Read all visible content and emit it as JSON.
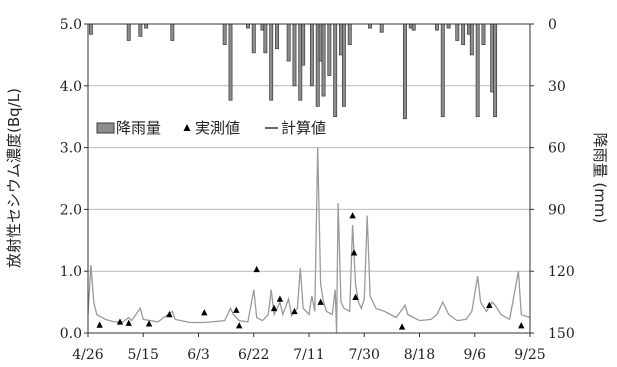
{
  "chart_data": {
    "type": "bar+line+scatter",
    "x_axis": {
      "tick_labels": [
        "4/26",
        "5/15",
        "6/3",
        "6/22",
        "7/11",
        "7/30",
        "8/18",
        "9/6",
        "9/25"
      ],
      "tick_days": [
        0,
        19,
        38,
        57,
        76,
        95,
        114,
        133,
        152
      ],
      "range_days": [
        0,
        152
      ]
    },
    "y_left": {
      "label": "放射性セシウム濃度(Bq/L)",
      "range": [
        0,
        5
      ],
      "tick_labels": [
        "0.0",
        "1.0",
        "2.0",
        "3.0",
        "4.0",
        "5.0"
      ],
      "ticks": [
        0,
        1,
        2,
        3,
        4,
        5
      ]
    },
    "y_right": {
      "label": "降雨量 (mm)",
      "range": [
        0,
        150
      ],
      "inverted": true,
      "tick_labels": [
        "0",
        "30",
        "60",
        "90",
        "120",
        "150"
      ],
      "ticks": [
        0,
        30,
        60,
        90,
        120,
        150
      ]
    },
    "grid": "horizontal",
    "legend": {
      "placement": "upper-left",
      "rain": "降雨量",
      "measured": "実測値",
      "calculated": "計算値"
    },
    "colors": {
      "bar": "#8c8c8c",
      "bar_edge": "#3a3a3a",
      "line": "#9a9a9a",
      "marker": "#000000",
      "grid": "#b8b8c8"
    },
    "rainfall": [
      {
        "day": 1,
        "mm": 5
      },
      {
        "day": 14,
        "mm": 8
      },
      {
        "day": 18,
        "mm": 6
      },
      {
        "day": 20,
        "mm": 2
      },
      {
        "day": 29,
        "mm": 8
      },
      {
        "day": 47,
        "mm": 10
      },
      {
        "day": 49,
        "mm": 37
      },
      {
        "day": 55,
        "mm": 2
      },
      {
        "day": 57,
        "mm": 14
      },
      {
        "day": 60,
        "mm": 3
      },
      {
        "day": 61,
        "mm": 14
      },
      {
        "day": 63,
        "mm": 37
      },
      {
        "day": 65,
        "mm": 12
      },
      {
        "day": 69,
        "mm": 18
      },
      {
        "day": 71,
        "mm": 30
      },
      {
        "day": 73,
        "mm": 37
      },
      {
        "day": 74,
        "mm": 20
      },
      {
        "day": 77,
        "mm": 30
      },
      {
        "day": 79,
        "mm": 40
      },
      {
        "day": 80,
        "mm": 18
      },
      {
        "day": 81,
        "mm": 35
      },
      {
        "day": 83,
        "mm": 25
      },
      {
        "day": 85,
        "mm": 45
      },
      {
        "day": 87,
        "mm": 15
      },
      {
        "day": 88,
        "mm": 40
      },
      {
        "day": 90,
        "mm": 10
      },
      {
        "day": 97,
        "mm": 2
      },
      {
        "day": 101,
        "mm": 4
      },
      {
        "day": 109,
        "mm": 46
      },
      {
        "day": 111,
        "mm": 2
      },
      {
        "day": 112,
        "mm": 3
      },
      {
        "day": 120,
        "mm": 3
      },
      {
        "day": 122,
        "mm": 45
      },
      {
        "day": 124,
        "mm": 2
      },
      {
        "day": 127,
        "mm": 8
      },
      {
        "day": 129,
        "mm": 10
      },
      {
        "day": 131,
        "mm": 5
      },
      {
        "day": 132,
        "mm": 15
      },
      {
        "day": 134,
        "mm": 45
      },
      {
        "day": 136,
        "mm": 10
      },
      {
        "day": 139,
        "mm": 33
      },
      {
        "day": 140,
        "mm": 45
      }
    ],
    "measured": [
      {
        "day": 4,
        "value": 0.13
      },
      {
        "day": 11,
        "value": 0.18
      },
      {
        "day": 14,
        "value": 0.16
      },
      {
        "day": 21,
        "value": 0.15
      },
      {
        "day": 28,
        "value": 0.3
      },
      {
        "day": 40,
        "value": 0.33
      },
      {
        "day": 51,
        "value": 0.37
      },
      {
        "day": 52,
        "value": 0.12
      },
      {
        "day": 58,
        "value": 1.03
      },
      {
        "day": 64,
        "value": 0.4
      },
      {
        "day": 66,
        "value": 0.55
      },
      {
        "day": 71,
        "value": 0.35
      },
      {
        "day": 80,
        "value": 0.5
      },
      {
        "day": 91,
        "value": 1.9
      },
      {
        "day": 91.5,
        "value": 1.3
      },
      {
        "day": 92,
        "value": 0.58
      },
      {
        "day": 108,
        "value": 0.1
      },
      {
        "day": 138,
        "value": 0.45
      },
      {
        "day": 149,
        "value": 0.12
      }
    ],
    "calculated": [
      {
        "day": 0,
        "value": 0.3
      },
      {
        "day": 1,
        "value": 1.1
      },
      {
        "day": 2,
        "value": 0.5
      },
      {
        "day": 3,
        "value": 0.3
      },
      {
        "day": 6,
        "value": 0.22
      },
      {
        "day": 9,
        "value": 0.18
      },
      {
        "day": 12,
        "value": 0.18
      },
      {
        "day": 14,
        "value": 0.25
      },
      {
        "day": 15,
        "value": 0.2
      },
      {
        "day": 18,
        "value": 0.4
      },
      {
        "day": 19,
        "value": 0.22
      },
      {
        "day": 24,
        "value": 0.18
      },
      {
        "day": 29,
        "value": 0.35
      },
      {
        "day": 30,
        "value": 0.22
      },
      {
        "day": 35,
        "value": 0.17
      },
      {
        "day": 40,
        "value": 0.17
      },
      {
        "day": 47,
        "value": 0.2
      },
      {
        "day": 49,
        "value": 0.4
      },
      {
        "day": 50,
        "value": 0.3
      },
      {
        "day": 52,
        "value": 0.2
      },
      {
        "day": 55,
        "value": 0.18
      },
      {
        "day": 57,
        "value": 0.7
      },
      {
        "day": 58,
        "value": 0.25
      },
      {
        "day": 60,
        "value": 0.2
      },
      {
        "day": 62,
        "value": 0.3
      },
      {
        "day": 63,
        "value": 0.7
      },
      {
        "day": 64,
        "value": 0.3
      },
      {
        "day": 66,
        "value": 0.5
      },
      {
        "day": 67,
        "value": 0.3
      },
      {
        "day": 69,
        "value": 0.55
      },
      {
        "day": 70,
        "value": 0.28
      },
      {
        "day": 72,
        "value": 0.4
      },
      {
        "day": 73,
        "value": 1.05
      },
      {
        "day": 74,
        "value": 0.4
      },
      {
        "day": 76,
        "value": 0.3
      },
      {
        "day": 77,
        "value": 0.6
      },
      {
        "day": 78,
        "value": 0.35
      },
      {
        "day": 79,
        "value": 3.0
      },
      {
        "day": 80,
        "value": 0.8
      },
      {
        "day": 81,
        "value": 0.5
      },
      {
        "day": 82,
        "value": 0.35
      },
      {
        "day": 84,
        "value": 0.3
      },
      {
        "day": 85,
        "value": 0.7
      },
      {
        "day": 85.5,
        "value": 0.0
      },
      {
        "day": 86,
        "value": 2.1
      },
      {
        "day": 87,
        "value": 0.5
      },
      {
        "day": 88,
        "value": 0.4
      },
      {
        "day": 90,
        "value": 0.35
      },
      {
        "day": 91,
        "value": 1.75
      },
      {
        "day": 92,
        "value": 0.8
      },
      {
        "day": 93,
        "value": 0.5
      },
      {
        "day": 94,
        "value": 0.4
      },
      {
        "day": 95,
        "value": 0.55
      },
      {
        "day": 96,
        "value": 1.9
      },
      {
        "day": 97,
        "value": 0.6
      },
      {
        "day": 99,
        "value": 0.4
      },
      {
        "day": 102,
        "value": 0.35
      },
      {
        "day": 104,
        "value": 0.3
      },
      {
        "day": 106,
        "value": 0.25
      },
      {
        "day": 109,
        "value": 0.45
      },
      {
        "day": 110,
        "value": 0.3
      },
      {
        "day": 114,
        "value": 0.2
      },
      {
        "day": 118,
        "value": 0.22
      },
      {
        "day": 120,
        "value": 0.3
      },
      {
        "day": 122,
        "value": 0.5
      },
      {
        "day": 124,
        "value": 0.3
      },
      {
        "day": 127,
        "value": 0.2
      },
      {
        "day": 130,
        "value": 0.22
      },
      {
        "day": 132,
        "value": 0.35
      },
      {
        "day": 134,
        "value": 0.92
      },
      {
        "day": 135,
        "value": 0.5
      },
      {
        "day": 137,
        "value": 0.35
      },
      {
        "day": 139,
        "value": 0.5
      },
      {
        "day": 140,
        "value": 0.45
      },
      {
        "day": 142,
        "value": 0.3
      },
      {
        "day": 145,
        "value": 0.22
      },
      {
        "day": 148,
        "value": 1.0
      },
      {
        "day": 149,
        "value": 0.3
      },
      {
        "day": 152,
        "value": 0.25
      }
    ]
  }
}
